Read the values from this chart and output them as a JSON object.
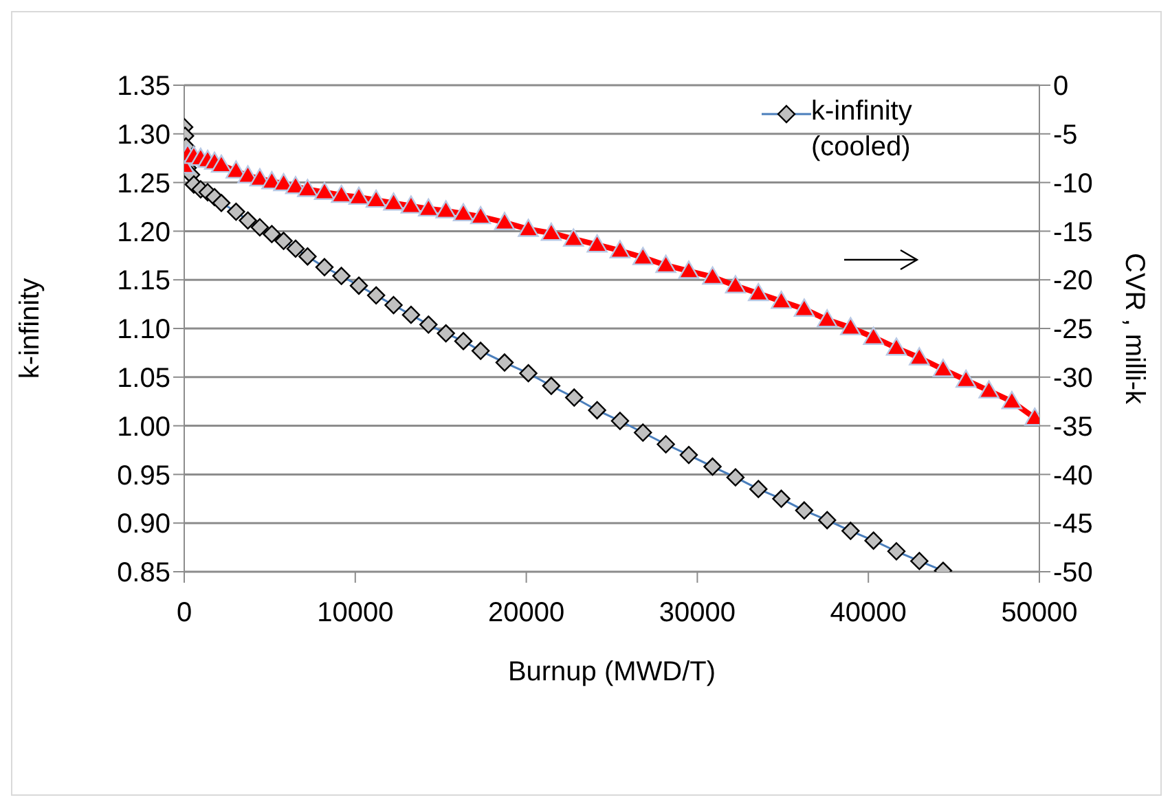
{
  "chart_data": {
    "type": "line",
    "xlabel": "Burnup (MWD/T)",
    "ylabel": "k-infinity",
    "y2label": "CVR , milli-k",
    "xlim": [
      0,
      50000
    ],
    "xticks": [
      0,
      10000,
      20000,
      30000,
      40000,
      50000
    ],
    "ylim": [
      0.85,
      1.35
    ],
    "yticks": [
      {
        "value": 0.85,
        "label": "0.85"
      },
      {
        "value": 0.9,
        "label": "0.90"
      },
      {
        "value": 0.95,
        "label": "0.95"
      },
      {
        "value": 1.0,
        "label": "1.00"
      },
      {
        "value": 1.05,
        "label": "1.05"
      },
      {
        "value": 1.1,
        "label": "1.10"
      },
      {
        "value": 1.15,
        "label": "1.15"
      },
      {
        "value": 1.2,
        "label": "1.20"
      },
      {
        "value": 1.25,
        "label": "1.25"
      },
      {
        "value": 1.3,
        "label": "1.30"
      },
      {
        "value": 1.35,
        "label": "1.35"
      }
    ],
    "y2lim": [
      -50,
      0
    ],
    "y2ticks": [
      -50,
      -45,
      -40,
      -35,
      -30,
      -25,
      -20,
      -15,
      -10,
      -5,
      0
    ],
    "grid": "y",
    "legend": "top right",
    "line_style": "solid",
    "series": [
      {
        "name": "k-infinity (cooled)",
        "color": "#c0c0c0",
        "marker": "diamond",
        "x": [
          0,
          50,
          100,
          200,
          400,
          560,
          960,
          1370,
          1770,
          2170,
          3030,
          3720,
          4420,
          5120,
          5810,
          6510,
          7210,
          8200,
          9190,
          10210,
          11220,
          12240,
          13260,
          14280,
          15300,
          16320,
          17330,
          18730,
          20120,
          21460,
          22800,
          24140,
          25480,
          26820,
          28160,
          29500,
          30890,
          32230,
          33570,
          34910,
          36250,
          37590,
          38960,
          40300,
          41640,
          42980,
          44370
        ],
        "values": [
          1.307,
          1.298,
          1.287,
          1.265,
          1.258,
          1.248,
          1.243,
          1.24,
          1.235,
          1.229,
          1.22,
          1.211,
          1.204,
          1.197,
          1.19,
          1.182,
          1.174,
          1.163,
          1.154,
          1.144,
          1.134,
          1.124,
          1.114,
          1.104,
          1.095,
          1.087,
          1.077,
          1.065,
          1.054,
          1.041,
          1.029,
          1.016,
          1.005,
          0.993,
          0.981,
          0.97,
          0.958,
          0.947,
          0.935,
          0.925,
          0.913,
          0.903,
          0.892,
          0.882,
          0.871,
          0.861,
          0.851
        ]
      },
      {
        "color": "#ff0000",
        "marker": "triangle",
        "axis": "y2",
        "x": [
          0,
          200,
          560,
          960,
          1370,
          1770,
          2170,
          3030,
          3720,
          4420,
          5120,
          5810,
          6510,
          7210,
          8200,
          9190,
          10210,
          11220,
          12240,
          13260,
          14280,
          15300,
          16320,
          17330,
          18730,
          20120,
          21460,
          22760,
          24140,
          25480,
          26820,
          28160,
          29500,
          30890,
          32230,
          33570,
          34910,
          36250,
          37590,
          38960,
          40300,
          41640,
          42980,
          44370,
          45710,
          47050,
          48390,
          49730
        ],
        "values": [
          -8.3,
          -7.1,
          -7.3,
          -7.5,
          -7.7,
          -7.9,
          -8.2,
          -8.8,
          -9.3,
          -9.6,
          -9.9,
          -10.1,
          -10.4,
          -10.7,
          -11,
          -11.3,
          -11.5,
          -11.8,
          -12.1,
          -12.4,
          -12.7,
          -12.9,
          -13.2,
          -13.5,
          -14.1,
          -14.8,
          -15.2,
          -15.8,
          -16.4,
          -17,
          -17.7,
          -18.5,
          -19.1,
          -19.7,
          -20.6,
          -21.4,
          -22.2,
          -23,
          -24.1,
          -24.9,
          -25.9,
          -27,
          -28,
          -29.2,
          -30.3,
          -31.4,
          -32.5,
          -34.2
        ]
      }
    ]
  }
}
